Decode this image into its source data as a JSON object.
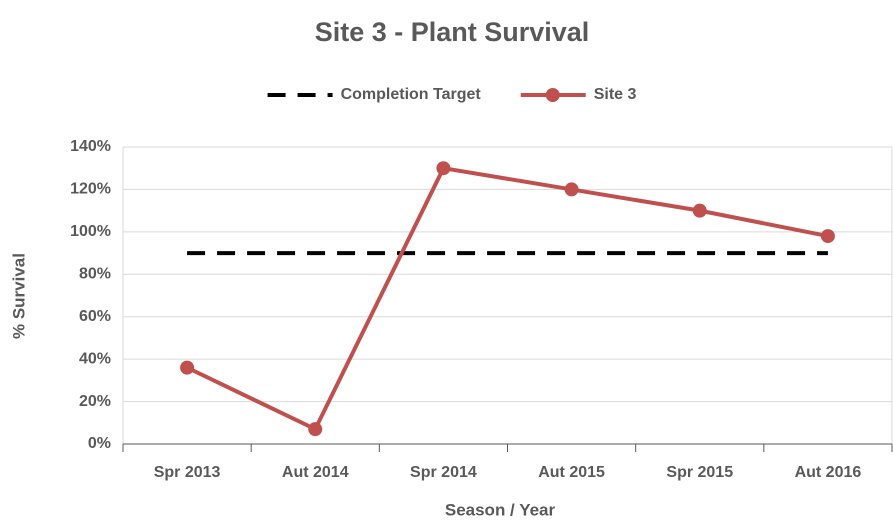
{
  "chart_data": {
    "type": "line",
    "title": "Site 3 - Plant Survival",
    "x_label": "Season / Year",
    "y_label": "% Survival",
    "categories": [
      "Spr 2013",
      "Aut 2014",
      "Spr 2014",
      "Aut 2015",
      "Spr 2015",
      "Aut 2016"
    ],
    "series": [
      {
        "name": "Completion Target",
        "color": "#000000",
        "line_style": "dashed",
        "marker": "none",
        "values": [
          90,
          90,
          90,
          90,
          90,
          90
        ]
      },
      {
        "name": "Site 3",
        "color": "#c0504d",
        "line_style": "solid",
        "marker": "circle",
        "values": [
          36,
          7,
          130,
          120,
          110,
          98
        ]
      }
    ],
    "ylim": [
      0,
      140
    ],
    "yticks": [
      {
        "value": 0,
        "label": "0%"
      },
      {
        "value": 20,
        "label": "20%"
      },
      {
        "value": 40,
        "label": "40%"
      },
      {
        "value": 60,
        "label": "60%"
      },
      {
        "value": 80,
        "label": "80%"
      },
      {
        "value": 100,
        "label": "100%"
      },
      {
        "value": 120,
        "label": "120%"
      },
      {
        "value": 140,
        "label": "140%"
      }
    ],
    "grid": true,
    "legend": "top"
  }
}
